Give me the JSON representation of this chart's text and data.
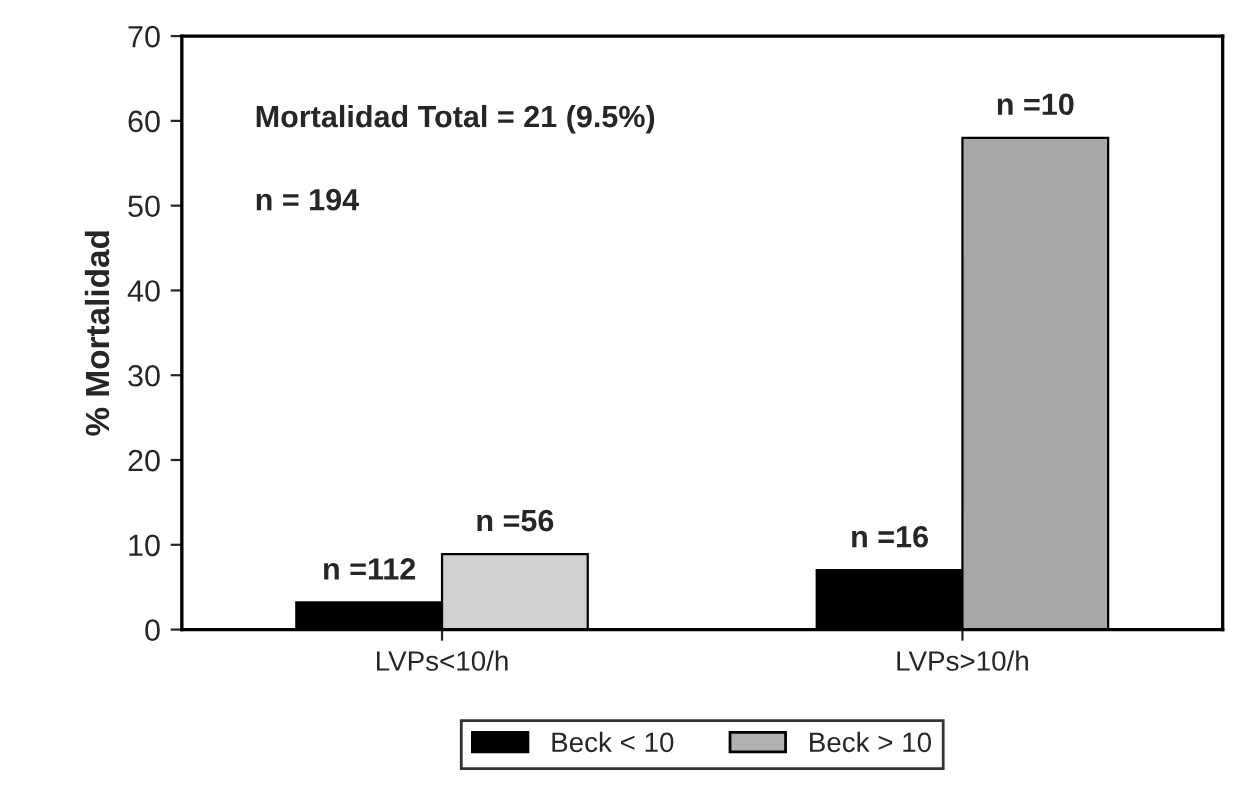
{
  "chart_data": {
    "type": "bar",
    "ylabel": "% Mortalidad",
    "categories": [
      "LVPs<10/h",
      "LVPs>10/h"
    ],
    "series": [
      {
        "name": "Beck < 10",
        "color": "#000000",
        "values": [
          3.2,
          7.0
        ]
      },
      {
        "name": "Beck > 10",
        "color": "#b0b0b0",
        "colors": [
          "#d0d0d0",
          "#a8a8a8"
        ],
        "values": [
          8.9,
          58.0
        ]
      }
    ],
    "annotations": [
      "Mortalidad Total = 21 (9.5%)",
      "n = 194",
      {
        "text": "n =112",
        "x": "LVPs<10/h",
        "y": 3.2
      },
      {
        "text": "n =56",
        "x": "LVPs<10/h",
        "y": 8.9
      },
      {
        "text": "n =16",
        "x": "LVPs>10/h",
        "y": 7.0
      },
      {
        "text": "n =10",
        "x": "LVPs>10/h",
        "y": 58.0
      }
    ],
    "ylim": [
      0,
      70
    ],
    "yticks": [
      0,
      10,
      20,
      30,
      40,
      50,
      60,
      70
    ],
    "grid": false,
    "legend": "bottom"
  }
}
